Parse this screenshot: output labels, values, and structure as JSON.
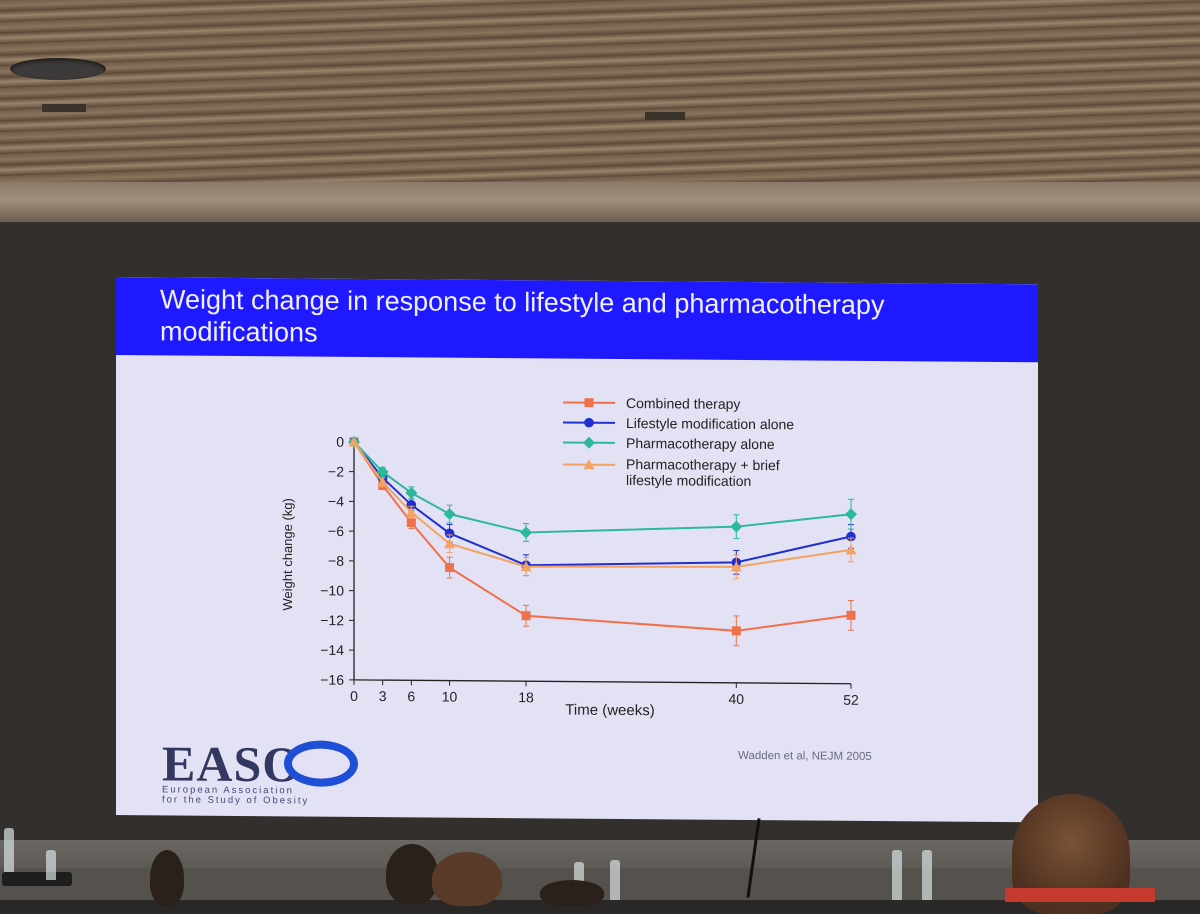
{
  "slide": {
    "title_line1": "Weight change in response to lifestyle and pharmacotherapy",
    "title_line2": "modifications",
    "citation": "Wadden et al, NEJM 2005",
    "logo": {
      "word": "EASO",
      "subtitle_line1": "European Association",
      "subtitle_line2": "for the Study of Obesity"
    }
  },
  "chart_data": {
    "type": "line",
    "title": "",
    "xlabel": "Time (weeks)",
    "ylabel": "Weight change (kg)",
    "x": [
      0,
      3,
      6,
      10,
      18,
      40,
      52
    ],
    "x_ticks": [
      "0",
      "3",
      "6",
      "10",
      "18",
      "40",
      "52"
    ],
    "y_ticks": [
      "0",
      "−2",
      "−4",
      "−6",
      "−8",
      "−10",
      "−12",
      "−14",
      "−16"
    ],
    "ylim": [
      -16,
      0
    ],
    "xlim": [
      0,
      52
    ],
    "legend_position": "top-right",
    "series": [
      {
        "name": "Combined therapy",
        "marker": "square",
        "color": "#f0704a",
        "values": [
          0,
          -2.9,
          -5.4,
          -8.4,
          -11.6,
          -12.5,
          -11.4
        ],
        "errors": [
          0,
          0.3,
          0.4,
          0.7,
          0.7,
          1.0,
          1.0
        ]
      },
      {
        "name": "Lifestyle modification alone",
        "marker": "circle",
        "color": "#1f2fd0",
        "values": [
          0,
          -2.4,
          -4.2,
          -6.1,
          -8.2,
          -7.9,
          -6.1
        ],
        "errors": [
          0,
          0.3,
          0.4,
          0.6,
          0.7,
          0.8,
          0.8
        ]
      },
      {
        "name": "Pharmacotherapy alone",
        "marker": "diamond",
        "color": "#2bb99a",
        "values": [
          0,
          -2.0,
          -3.4,
          -4.8,
          -6.0,
          -5.5,
          -4.6
        ],
        "errors": [
          0,
          0.3,
          0.4,
          0.6,
          0.6,
          0.8,
          1.0
        ]
      },
      {
        "name": "Pharmacotherapy + brief lifestyle modification",
        "name_line1": "Pharmacotherapy + brief",
        "name_line2": "lifestyle modification",
        "marker": "triangle",
        "color": "#f2a262",
        "values": [
          0,
          -2.7,
          -4.7,
          -6.8,
          -8.3,
          -8.2,
          -7.0
        ],
        "errors": [
          0,
          0.3,
          0.4,
          0.6,
          0.6,
          0.8,
          0.8
        ]
      }
    ]
  }
}
